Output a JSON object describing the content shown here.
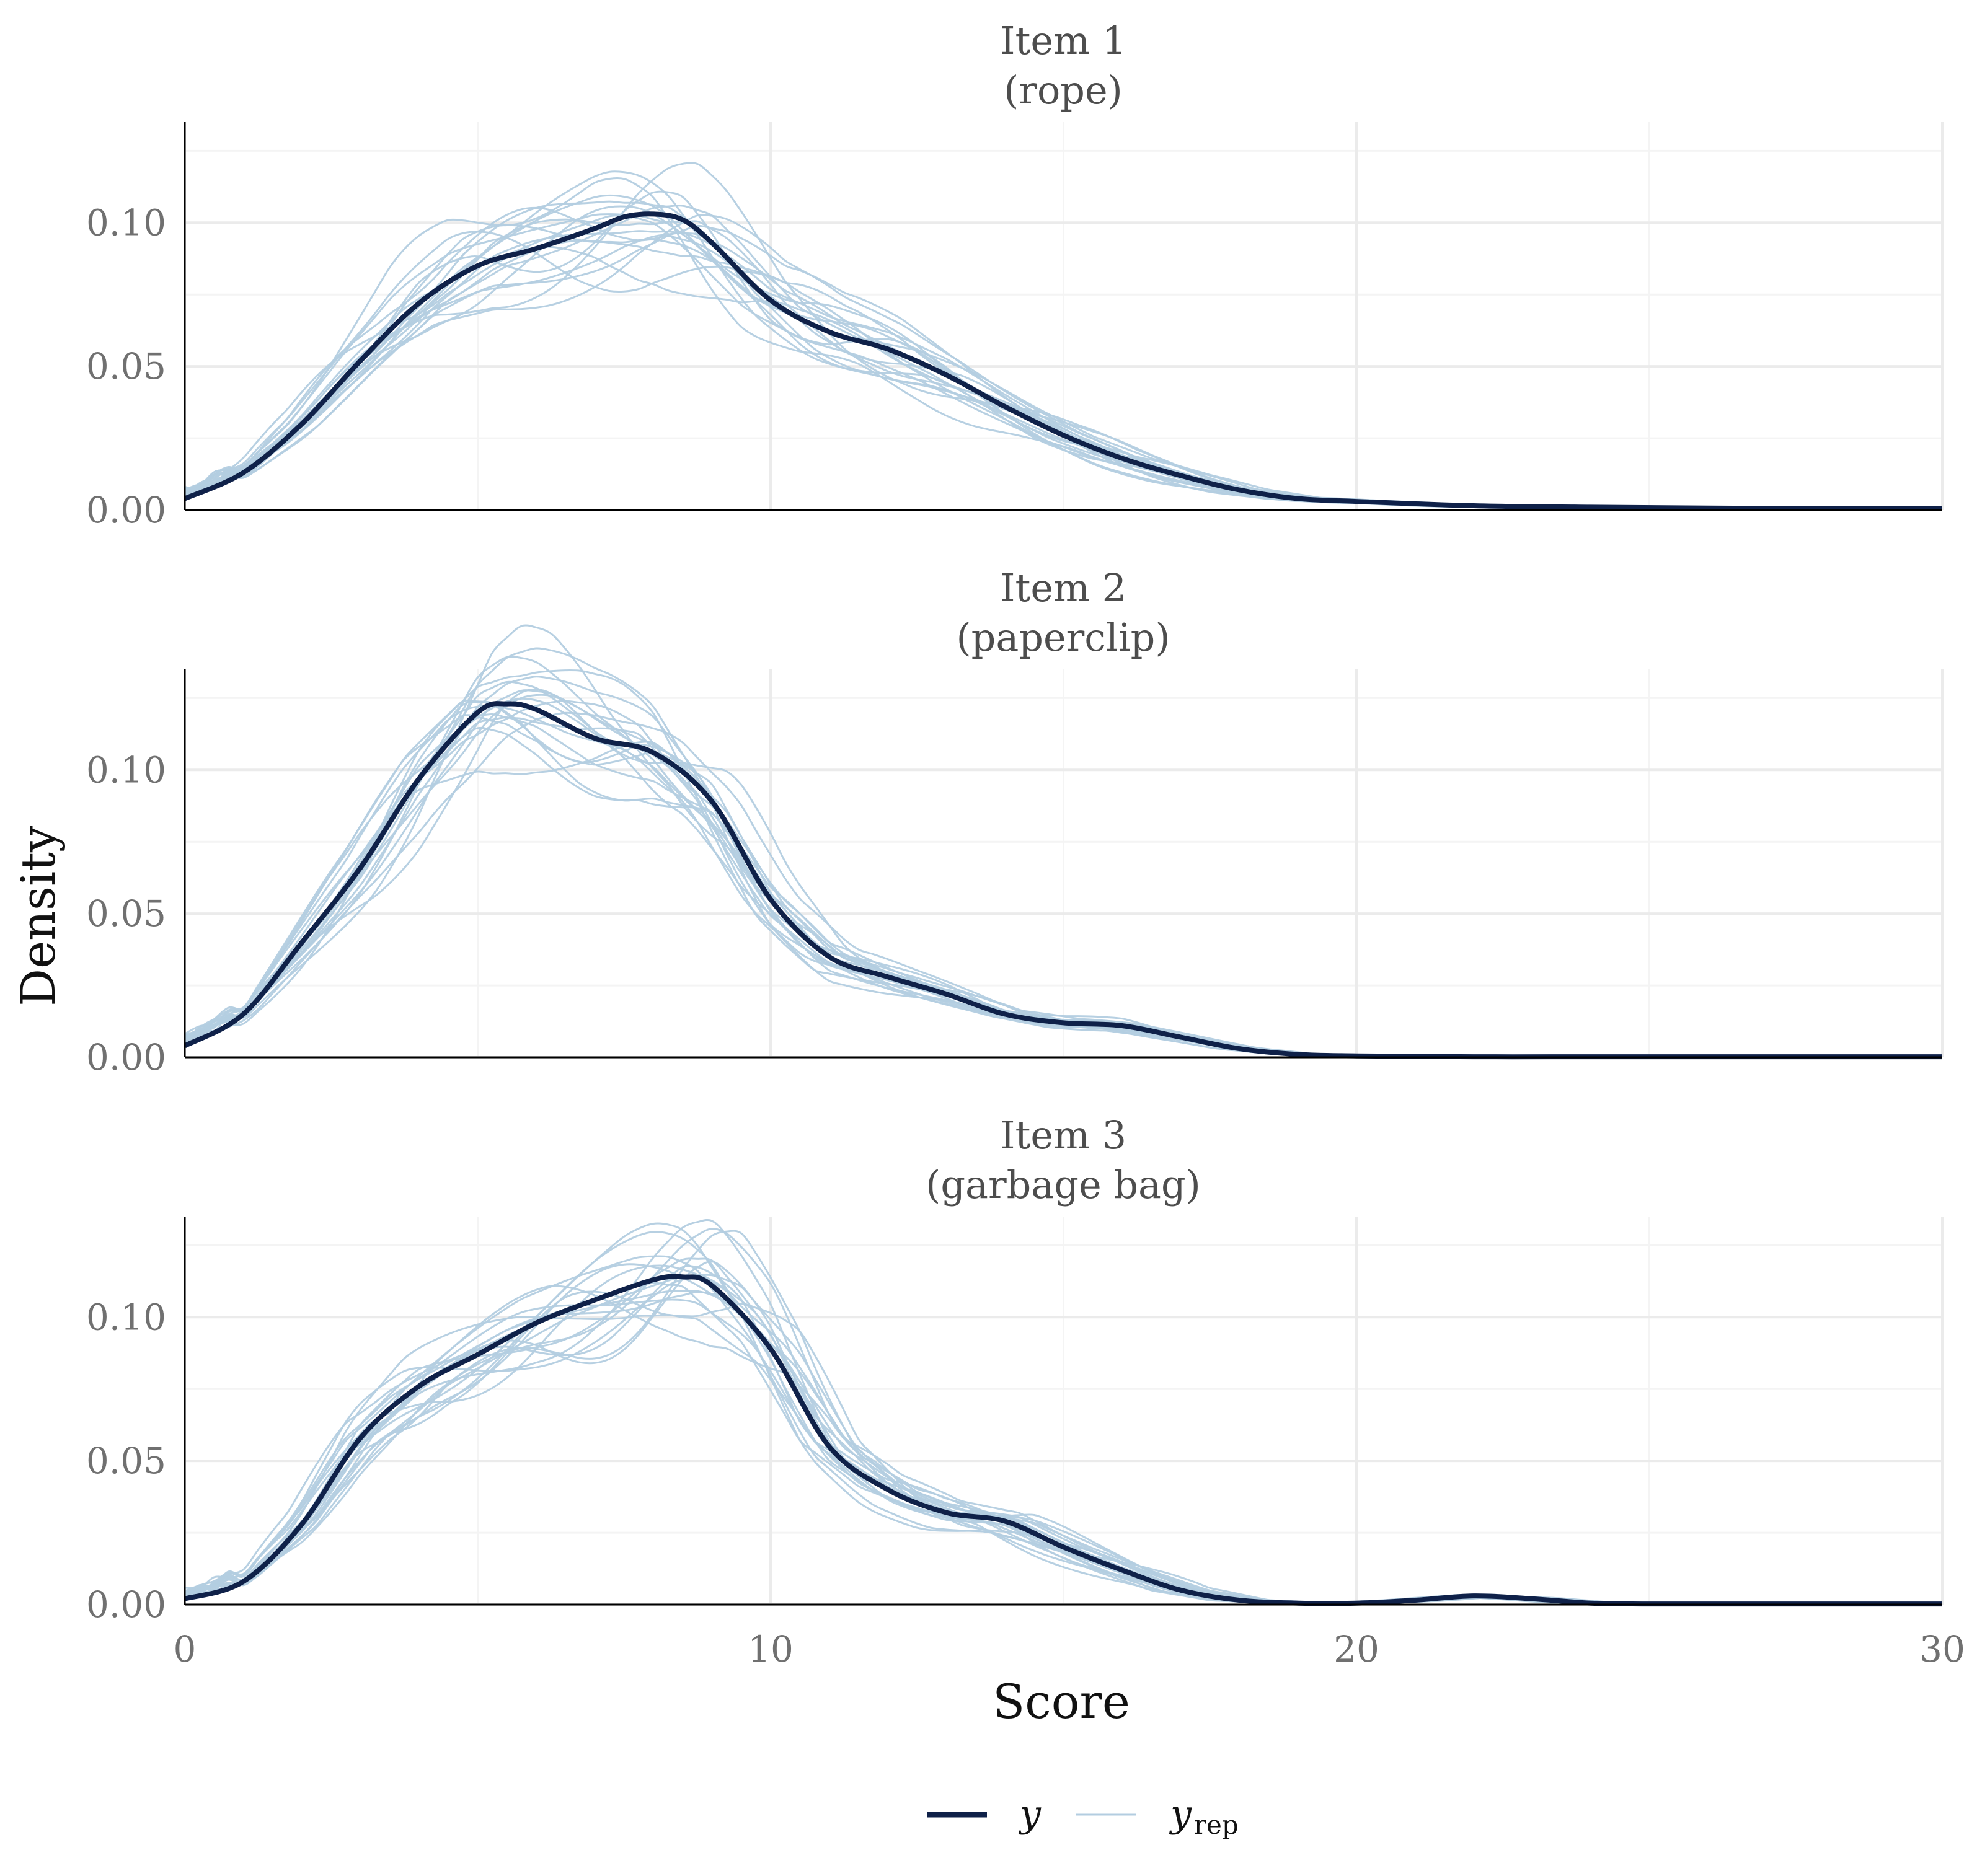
{
  "chart_data": {
    "type": "line",
    "ylabel": "Density",
    "xlabel": "Score",
    "xlim": [
      0,
      30
    ],
    "ylim": [
      0,
      0.135
    ],
    "xticks": [
      "0",
      "10",
      "20",
      "30"
    ],
    "xtick_values": [
      0,
      10,
      20,
      30
    ],
    "yticks": [
      "0.00",
      "0.05",
      "0.10"
    ],
    "ytick_values": [
      0,
      0.05,
      0.1
    ],
    "grid": true,
    "legend": {
      "position": "bottom",
      "entries": [
        {
          "label": "y",
          "sub": ""
        },
        {
          "label": "y",
          "sub": "rep"
        }
      ]
    },
    "colors": {
      "y": "#0f2149",
      "y_rep": "#b3cde0",
      "grid_major": "#ebebeb",
      "grid_minor": "#f4f4f4",
      "axis": "#000000"
    },
    "replicate_count": 20,
    "panels": [
      {
        "title": "Item 1",
        "subtitle": "(rope)",
        "series": {
          "name": "y",
          "x": [
            0,
            1,
            2,
            3,
            4,
            5,
            6,
            7,
            7.5,
            8,
            8.5,
            9,
            10,
            11,
            12,
            13,
            14,
            15,
            16,
            17,
            18,
            19,
            20,
            22,
            24,
            26,
            28,
            30
          ],
          "values": [
            0.004,
            0.013,
            0.03,
            0.052,
            0.072,
            0.085,
            0.091,
            0.098,
            0.102,
            0.103,
            0.101,
            0.093,
            0.073,
            0.062,
            0.056,
            0.047,
            0.036,
            0.026,
            0.018,
            0.012,
            0.007,
            0.004,
            0.003,
            0.0015,
            0.001,
            0.0007,
            0.0005,
            0.0005
          ]
        }
      },
      {
        "title": "Item 2",
        "subtitle": "(paperclip)",
        "series": {
          "name": "y",
          "x": [
            0,
            1,
            2,
            3,
            4,
            5,
            5.5,
            6,
            7,
            8,
            9,
            10,
            11,
            12,
            13,
            14,
            15,
            16,
            17,
            18,
            19,
            20,
            22,
            24,
            26,
            28,
            30
          ],
          "values": [
            0.004,
            0.015,
            0.04,
            0.066,
            0.097,
            0.12,
            0.123,
            0.121,
            0.111,
            0.106,
            0.089,
            0.055,
            0.035,
            0.028,
            0.022,
            0.015,
            0.012,
            0.011,
            0.007,
            0.003,
            0.001,
            0.0005,
            0.0002,
            0.0002,
            0.0002,
            0.0002,
            0.0002
          ]
        }
      },
      {
        "title": "Item 3",
        "subtitle": "(garbage bag)",
        "series": {
          "name": "y",
          "x": [
            0,
            1,
            2,
            3,
            4,
            5,
            6,
            7,
            8,
            8.5,
            9,
            10,
            11,
            12,
            13,
            14,
            15,
            16,
            17,
            18,
            19,
            20,
            21,
            22,
            23,
            24,
            25,
            27,
            30
          ],
          "values": [
            0.002,
            0.008,
            0.028,
            0.058,
            0.076,
            0.087,
            0.098,
            0.106,
            0.113,
            0.114,
            0.111,
            0.089,
            0.055,
            0.04,
            0.032,
            0.029,
            0.02,
            0.012,
            0.005,
            0.0015,
            0.0005,
            0.0005,
            0.0015,
            0.003,
            0.002,
            0.0005,
            0.0002,
            0.0002,
            0.0002
          ]
        }
      }
    ]
  }
}
